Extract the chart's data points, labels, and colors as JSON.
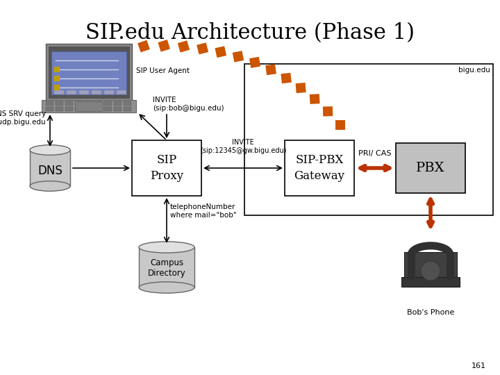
{
  "title": "SIP.edu Architecture (Phase 1)",
  "background_color": "#ffffff",
  "title_fontsize": 22,
  "page_number": "161",
  "laptop_label": "SIP User Agent",
  "dns_label": "DNS",
  "sip_proxy_label": "SIP\nProxy",
  "sip_pbx_label": "SIP-PBX\nGateway",
  "pbx_label": "PBX",
  "campus_dir_label": "Campus\nDirectory",
  "phone_label": "Bob's Phone",
  "bigu_label": "bigu.edu",
  "dns_srv_text": "DNS SRV query\nsip.udp.bigu.edu",
  "invite_text1": "INVITE\n(sip:bob@bigu.edu)",
  "invite_text2": "INVITE\n(sip:12345@gw.bigu.edu)",
  "pri_cas_text": "PRI/ CAS",
  "tel_number_text": "telephoneNumber\nwhere mail=\"bob\"",
  "dashed_color": "#cc5500",
  "arrow_color": "#000000",
  "pbx_arrow_color": "#bb3300",
  "box_edge_color": "#000000"
}
